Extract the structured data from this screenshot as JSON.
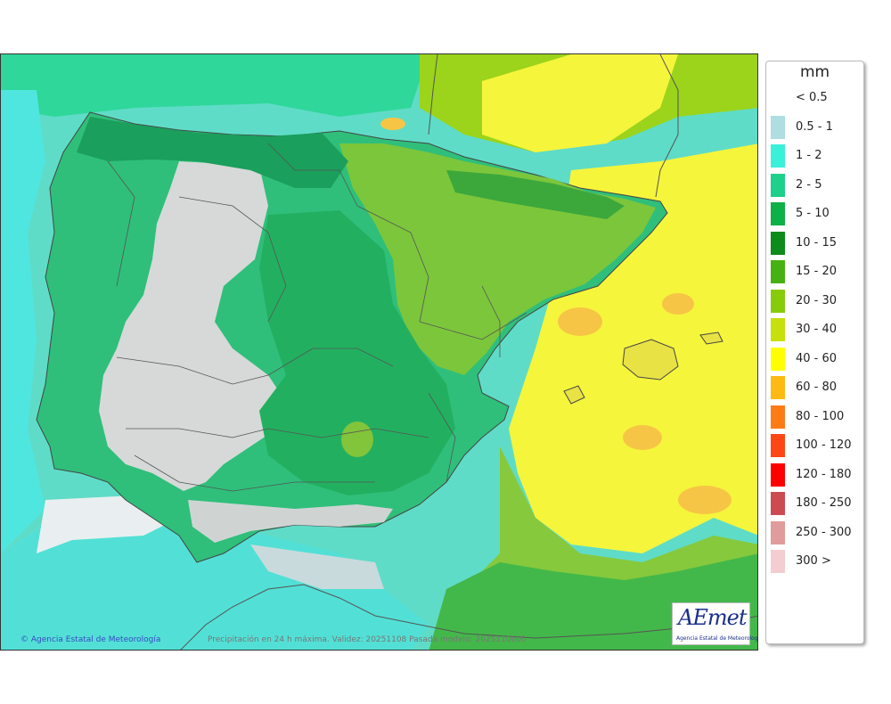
{
  "map": {
    "credit": "Agencia Estatal de Meteorología",
    "caption": "Precipitación en 24 h máxima. Validez: 20251108 Pasada modelo: 2025110600",
    "logo_text": "AEmet",
    "logo_sub": "Agencia Estatal de Meteorología"
  },
  "legend": {
    "unit": "mm",
    "classes": [
      {
        "label": "< 0.5",
        "color": "#ffffff"
      },
      {
        "label": "0.5 - 1",
        "color": "#b0dde1"
      },
      {
        "label": "1 - 2",
        "color": "#3bf0d8"
      },
      {
        "label": "2 - 5",
        "color": "#1ed08a"
      },
      {
        "label": "5 - 10",
        "color": "#0eb048"
      },
      {
        "label": "10 - 15",
        "color": "#0d8b1b"
      },
      {
        "label": "15 - 20",
        "color": "#47b113"
      },
      {
        "label": "20 - 30",
        "color": "#88cb0a"
      },
      {
        "label": "30 - 40",
        "color": "#c6e00c"
      },
      {
        "label": "40 - 60",
        "color": "#ffff00"
      },
      {
        "label": "60 - 80",
        "color": "#fcba12"
      },
      {
        "label": "80 - 100",
        "color": "#ff7b16"
      },
      {
        "label": "100 - 120",
        "color": "#ff4715"
      },
      {
        "label": "120 - 180",
        "color": "#ff0000"
      },
      {
        "label": "180 - 250",
        "color": "#cc4b53"
      },
      {
        "label": "250 - 300",
        "color": "#e09b9c"
      },
      {
        "label": "300 >",
        "color": "#f4cdd0"
      }
    ]
  }
}
